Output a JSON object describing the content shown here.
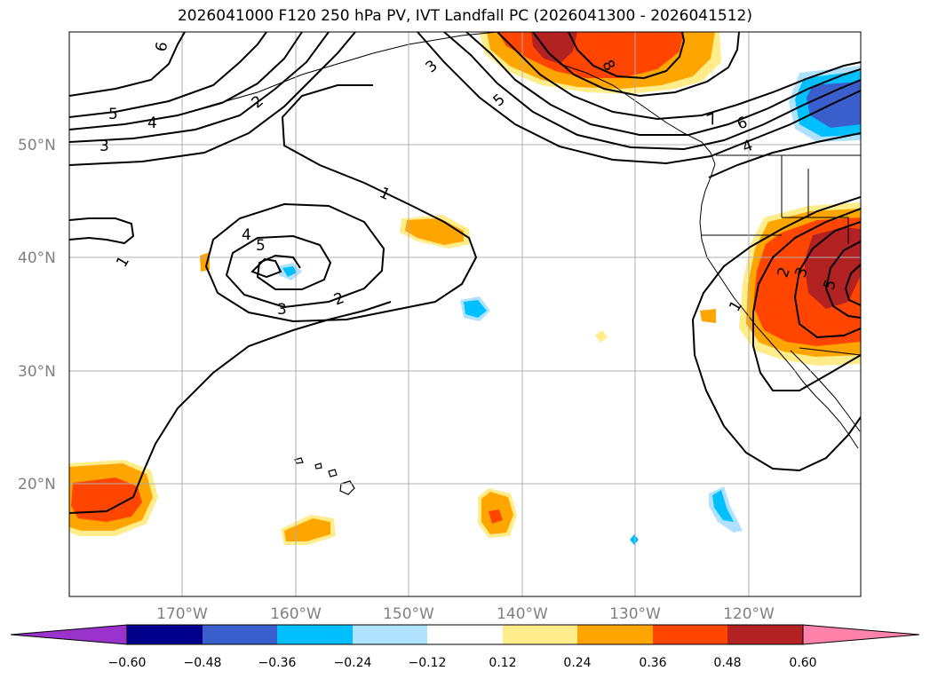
{
  "title": "2026041000 F120 250 hPa PV, IVT Landfall PC (2026041300 - 2026041512)",
  "lat_labels": [
    "50°N",
    "40°N",
    "30°N",
    "20°N"
  ],
  "lon_labels": [
    "170°W",
    "160°W",
    "150°W",
    "140°W",
    "130°W",
    "120°W"
  ],
  "colorbar": {
    "tick_labels": [
      "−0.60",
      "−0.48",
      "−0.36",
      "−0.24",
      "−0.12",
      "0.12",
      "0.24",
      "0.36",
      "0.48",
      "0.60"
    ],
    "colors": [
      "#9933cc",
      "#00008b",
      "#3a5fcd",
      "#00bfff",
      "#b0e2ff",
      "#ffffff",
      "#ffec8b",
      "#ffa500",
      "#ff4500",
      "#b22222",
      "#ff82ab"
    ]
  },
  "contour_labels": [
    "6",
    "5",
    "4",
    "3",
    "2",
    "1",
    "3",
    "5",
    "8",
    "7",
    "6",
    "4",
    "1",
    "4",
    "5",
    "3",
    "2",
    "2",
    "3",
    "5",
    "1"
  ]
}
